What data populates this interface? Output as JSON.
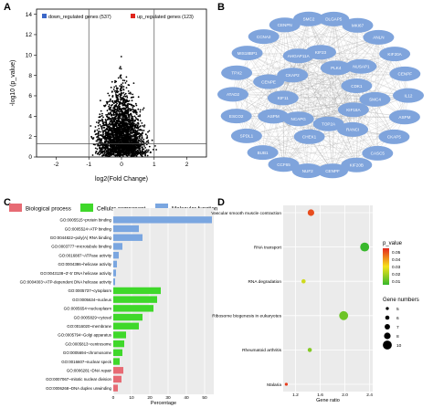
{
  "colors": {
    "down": "#3b67c8",
    "up": "#e0251d",
    "neutral": "#000000",
    "node": "#7fa4dc",
    "edge": "#8a8a8a",
    "bp": "#e76b74",
    "cc": "#3fd82a",
    "mf": "#7aa6e0",
    "grad_high": "#e5281f",
    "grad_mid": "#f5e21a",
    "grad_low": "#38b82c"
  },
  "panels": {
    "a": "A",
    "b": "B",
    "c": "C",
    "d": "D"
  },
  "chart_data": [
    {
      "type": "scatter",
      "panel": "A",
      "xlabel": "log2(Fold Change)",
      "ylabel": "-log10 (p_value)",
      "xlim": [
        -2.6,
        2.6
      ],
      "ylim": [
        0,
        14.5
      ],
      "x_ticks": [
        "-2",
        "-1",
        "0",
        "1",
        "2"
      ],
      "y_ticks": [
        "0",
        "2",
        "4",
        "6",
        "8",
        "10",
        "12",
        "14"
      ],
      "thresholds": {
        "x": [
          -1,
          1
        ],
        "y": 1.3
      },
      "legend": [
        {
          "label": "down_regulated genes (537)",
          "color": "#3b67c8"
        },
        {
          "label": "up_regulated genes (123)",
          "color": "#e0251d"
        }
      ],
      "down_count": 537,
      "up_count": 123
    },
    {
      "type": "bar",
      "panel": "C",
      "legend": [
        {
          "label": "Biological process",
          "color": "#e76b74"
        },
        {
          "label": "Cellular component",
          "color": "#3fd82a"
        },
        {
          "label": "Molecular function",
          "color": "#7aa6e0"
        }
      ],
      "xlabel": "Percentage",
      "xlim": [
        0,
        55
      ],
      "x_ticks": [
        0,
        10,
        20,
        30,
        40,
        50
      ],
      "categories": [
        "GO:0005515~protein binding",
        "GO:0005524~ATP binding",
        "GO:0044822~poly(A) RNA binding",
        "GO:0003777~microtubule binding",
        "GO:0016887~ATPase activity",
        "GO:0004386~helicase activity",
        "GO:0043138~3'-5' DNA helicase activity",
        "GO:0004003~ATP-dependent DNA helicase activity",
        "GO:0005737~cytoplasm",
        "GO:0005634~nucleus",
        "GO:0005654~nucleoplasm",
        "GO:0005829~cytosol",
        "GO:0016020~membrane",
        "GO:0005794~Golgi apparatus",
        "GO:0005813~centrosome",
        "GO:0005694~chromosome",
        "GO:0016607~nuclear speck",
        "GO:0006281~DNA repair",
        "GO:0007067~mitotic nuclear division",
        "GO:0006268~DNA duplex unwinding"
      ],
      "values": [
        54,
        14,
        16,
        5,
        3,
        2,
        1.5,
        1,
        26,
        24,
        22,
        16,
        14,
        7,
        6,
        5,
        3.5,
        5.5,
        4.5,
        2.5
      ],
      "groups": [
        "mf",
        "mf",
        "mf",
        "mf",
        "mf",
        "mf",
        "mf",
        "mf",
        "cc",
        "cc",
        "cc",
        "cc",
        "cc",
        "cc",
        "cc",
        "cc",
        "cc",
        "bp",
        "bp",
        "bp"
      ]
    },
    {
      "type": "scatter",
      "panel": "D",
      "xlabel": "Gene ratio",
      "xlim": [
        1,
        2.45
      ],
      "x_ticks": [
        "1.2",
        "1.6",
        "2.0",
        "2.4"
      ],
      "categories": [
        "Vascular smooth muscle contraction",
        "RNA transport",
        "RNA degradation",
        "Ribosome biogenesis in eukaryotes",
        "Rheumatoid arthritis",
        "Malaria"
      ],
      "x": [
        1.45,
        2.32,
        1.33,
        1.98,
        1.43,
        1.05
      ],
      "gene_numbers": [
        8,
        10,
        6,
        10,
        6,
        5
      ],
      "p_value": [
        0.05,
        0.005,
        0.025,
        0.012,
        0.015,
        0.052
      ],
      "colorbar": {
        "title": "p_value",
        "ticks": [
          "0.05",
          "0.04",
          "0.03",
          "0.02",
          "0.01"
        ],
        "range": [
          0.005,
          0.055
        ]
      },
      "size_legend": {
        "title": "Gene numbers",
        "values": [
          "5",
          "6",
          "7",
          "8",
          "10"
        ]
      }
    }
  ],
  "network": {
    "nodes": [
      "DLGAP5",
      "MKI67",
      "ANLN",
      "KIF20A",
      "CENPF",
      "E2F2",
      "FOXM1",
      "RRM2",
      "HIST1H4C",
      "KIF2C",
      "BUB1B",
      "CDK1",
      "TOP2A",
      "AURKA",
      "KIF11",
      "NCAPG",
      "CHEK1",
      "SMC4",
      "BIRC5",
      "ECT2",
      "CCNB1",
      "CENPA",
      "RACGAP1",
      "KIF4A",
      "NUSAP1",
      "TYMS",
      "PLK4",
      "ATAD2",
      "ASPM",
      "BUB1",
      "TPX2",
      "CKS1B",
      "CASC5",
      "CENPE",
      "PRC1",
      "MCM10",
      "KIF14"
    ],
    "labels": [
      "DLGAP5",
      "MKI67",
      "ANLN",
      "KIF20A",
      "CENPF",
      "IL12",
      "ASPM",
      "CKAP5",
      "CASC5",
      "KIF20B",
      "CENPF",
      "NUF2",
      "CCF65",
      "BUB1",
      "SPDL1",
      "ESCO2",
      "ATAD2",
      "TPX2",
      "MIS18BP1",
      "CCNA2",
      "CENPN",
      "SMC2",
      "KIF23",
      "PLK4",
      "NUSAP1",
      "CDK1",
      "SMC4",
      "KIF18A",
      "RANCI",
      "TOP2A",
      "CHEK1",
      "NCAPG",
      "ASPM",
      "KIF11",
      "CENPE",
      "CKAP2",
      "AHGAP11A"
    ]
  }
}
